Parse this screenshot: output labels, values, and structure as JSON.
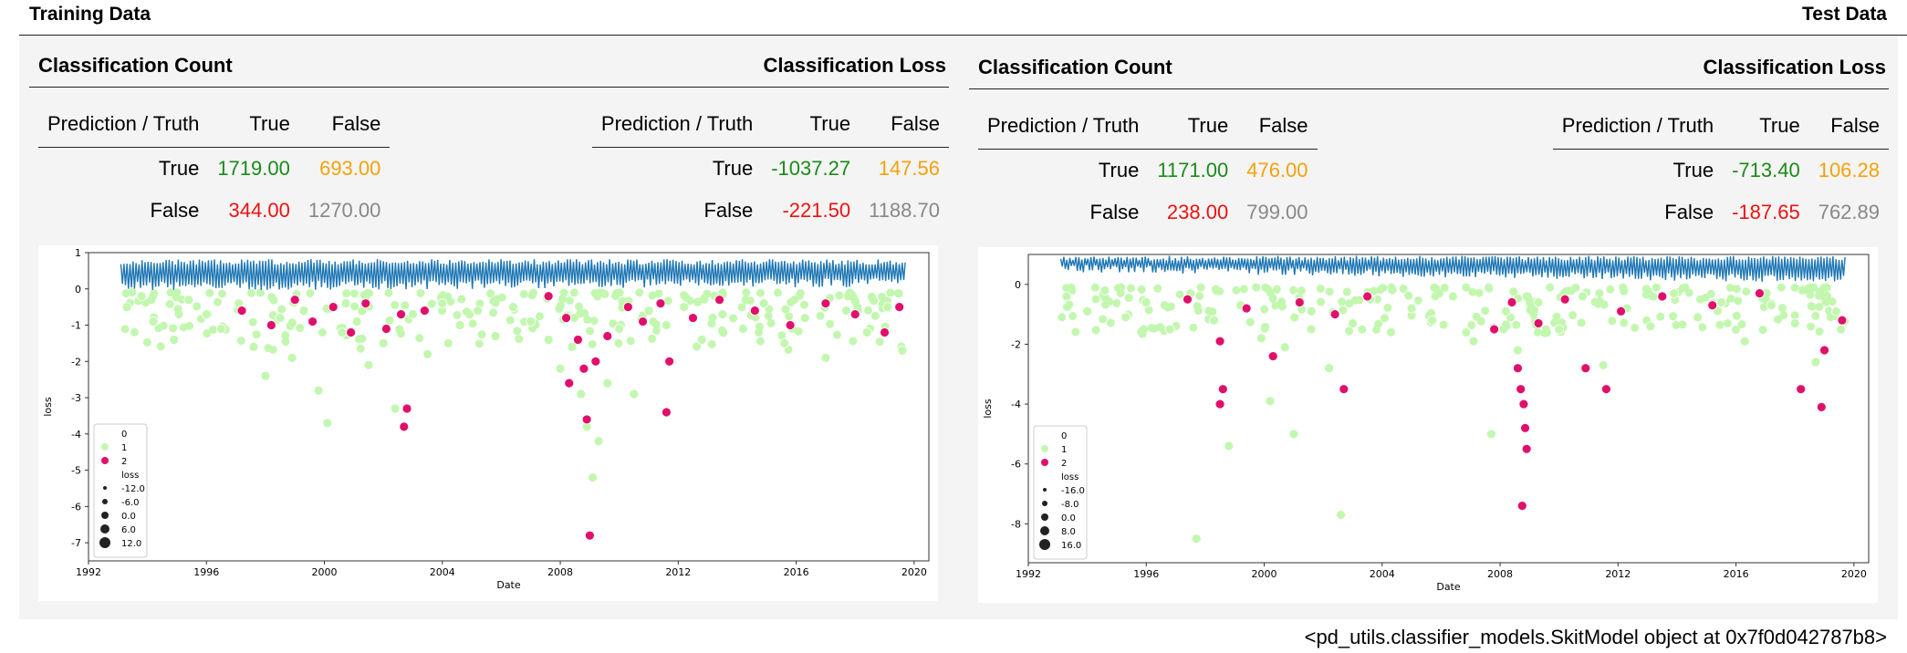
{
  "header": {
    "left_title": "Training Data",
    "right_title": "Test Data"
  },
  "colors": {
    "true_value": "#1a8a1a",
    "false_pos": "#f2a20c",
    "false_neg": "#ee1111",
    "true_neg": "#888888",
    "line": "#1f77b4",
    "class1": "#c3f7b0",
    "class2": "#e0106a"
  },
  "train": {
    "count": {
      "title": "Classification Count",
      "header": [
        "Prediction / Truth",
        "True",
        "False"
      ],
      "rows": [
        {
          "label": "True",
          "v1": "1719.00",
          "v2": "693.00"
        },
        {
          "label": "False",
          "v1": "344.00",
          "v2": "1270.00"
        }
      ]
    },
    "loss": {
      "title": "Classification Loss",
      "header": [
        "Prediction / Truth",
        "True",
        "False"
      ],
      "rows": [
        {
          "label": "True",
          "v1": "-1037.27",
          "v2": "147.56"
        },
        {
          "label": "False",
          "v1": "-221.50",
          "v2": "1188.70"
        }
      ]
    }
  },
  "test": {
    "count": {
      "title": "Classification Count",
      "header": [
        "Prediction / Truth",
        "True",
        "False"
      ],
      "rows": [
        {
          "label": "True",
          "v1": "1171.00",
          "v2": "476.00"
        },
        {
          "label": "False",
          "v1": "238.00",
          "v2": "799.00"
        }
      ]
    },
    "loss": {
      "title": "Classification Loss",
      "header": [
        "Prediction / Truth",
        "True",
        "False"
      ],
      "rows": [
        {
          "label": "True",
          "v1": "-713.40",
          "v2": "106.28"
        },
        {
          "label": "False",
          "v1": "-187.65",
          "v2": "762.89"
        }
      ]
    }
  },
  "chart_data": [
    {
      "type": "scatter",
      "xlabel": "Date",
      "ylabel": "loss",
      "xlim": [
        1992,
        2020.5
      ],
      "ylim": [
        -7.5,
        1.0
      ],
      "xticks": [
        1992,
        1996,
        2000,
        2004,
        2008,
        2012,
        2016,
        2020
      ],
      "yticks": [
        1,
        0,
        -1,
        -2,
        -3,
        -4,
        -5,
        -6,
        -7
      ],
      "line_band": {
        "start": 1993.1,
        "end": 2019.7,
        "low_start": -0.05,
        "low_end": 0.05,
        "high": 0.82
      },
      "legend": {
        "hue_title": "0",
        "hue": [
          "1",
          "2"
        ],
        "size_title": "loss",
        "sizes": [
          "-12.0",
          "-6.0",
          "0.0",
          "6.0",
          "12.0"
        ]
      },
      "series": [
        {
          "name": "1",
          "points": [
            [
              1993.3,
              -0.5
            ],
            [
              1993.8,
              -0.2
            ],
            [
              1994.2,
              -0.9
            ],
            [
              1994.9,
              -1.4
            ],
            [
              1995.4,
              -0.3
            ],
            [
              1996.0,
              -0.7
            ],
            [
              1996.5,
              -1.1
            ],
            [
              1997.1,
              -0.4
            ],
            [
              1997.6,
              -1.6
            ],
            [
              1998.0,
              -2.4
            ],
            [
              1998.5,
              -0.8
            ],
            [
              1998.9,
              -1.9
            ],
            [
              1999.3,
              -0.6
            ],
            [
              1999.8,
              -2.8
            ],
            [
              2000.1,
              -3.7
            ],
            [
              2000.6,
              -1.2
            ],
            [
              2001.1,
              -0.9
            ],
            [
              2001.5,
              -2.1
            ],
            [
              2002.0,
              -1.5
            ],
            [
              2002.4,
              -3.3
            ],
            [
              2003.0,
              -0.7
            ],
            [
              2003.5,
              -1.8
            ],
            [
              2004.0,
              -0.4
            ],
            [
              2004.6,
              -1.0
            ],
            [
              2005.2,
              -0.6
            ],
            [
              2005.8,
              -1.3
            ],
            [
              2006.4,
              -0.5
            ],
            [
              2007.0,
              -0.9
            ],
            [
              2007.6,
              -1.4
            ],
            [
              2008.0,
              -2.2
            ],
            [
              2008.4,
              -1.6
            ],
            [
              2008.7,
              -2.9
            ],
            [
              2008.9,
              -3.8
            ],
            [
              2009.1,
              -5.2
            ],
            [
              2009.3,
              -4.2
            ],
            [
              2009.6,
              -2.6
            ],
            [
              2010.0,
              -1.1
            ],
            [
              2010.5,
              -2.9
            ],
            [
              2011.0,
              -0.6
            ],
            [
              2011.6,
              -1.0
            ],
            [
              2012.2,
              -0.5
            ],
            [
              2012.8,
              -1.4
            ],
            [
              2013.5,
              -0.7
            ],
            [
              2014.2,
              -1.1
            ],
            [
              2014.9,
              -0.4
            ],
            [
              2015.6,
              -1.5
            ],
            [
              2016.3,
              -0.8
            ],
            [
              2017.0,
              -1.9
            ],
            [
              2017.7,
              -0.6
            ],
            [
              2018.4,
              -1.2
            ],
            [
              2019.1,
              -0.5
            ],
            [
              2019.6,
              -1.7
            ]
          ]
        },
        {
          "name": "2",
          "points": [
            [
              1997.2,
              -0.6
            ],
            [
              1998.2,
              -1.0
            ],
            [
              1999.0,
              -0.3
            ],
            [
              1999.6,
              -0.9
            ],
            [
              2000.3,
              -0.5
            ],
            [
              2000.9,
              -1.2
            ],
            [
              2001.4,
              -0.4
            ],
            [
              2002.1,
              -1.1
            ],
            [
              2002.6,
              -0.7
            ],
            [
              2002.8,
              -3.3
            ],
            [
              2002.7,
              -3.8
            ],
            [
              2003.4,
              -0.6
            ],
            [
              2007.6,
              -0.2
            ],
            [
              2008.2,
              -0.8
            ],
            [
              2008.3,
              -2.6
            ],
            [
              2008.6,
              -1.4
            ],
            [
              2008.8,
              -2.2
            ],
            [
              2008.9,
              -3.6
            ],
            [
              2009.0,
              -6.8
            ],
            [
              2009.2,
              -2.0
            ],
            [
              2009.6,
              -1.3
            ],
            [
              2010.3,
              -0.5
            ],
            [
              2010.8,
              -0.9
            ],
            [
              2011.4,
              -0.4
            ],
            [
              2011.6,
              -3.4
            ],
            [
              2011.7,
              -2.0
            ],
            [
              2012.5,
              -0.8
            ],
            [
              2013.4,
              -0.3
            ],
            [
              2014.6,
              -0.6
            ],
            [
              2015.8,
              -1.0
            ],
            [
              2017.0,
              -0.4
            ],
            [
              2018.0,
              -0.7
            ],
            [
              2019.0,
              -1.2
            ],
            [
              2019.5,
              -0.5
            ]
          ]
        }
      ]
    },
    {
      "type": "scatter",
      "xlabel": "Date",
      "ylabel": "loss",
      "xlim": [
        1992,
        2020.5
      ],
      "ylim": [
        -9.3,
        1.0
      ],
      "xticks": [
        1992,
        1996,
        2000,
        2004,
        2008,
        2012,
        2016,
        2020
      ],
      "yticks": [
        0,
        -2,
        -4,
        -6,
        -8
      ],
      "line_band": {
        "start": 1993.1,
        "end": 2019.7,
        "low_start": 0.4,
        "low_end": 0.05,
        "high": 0.95
      },
      "legend": {
        "hue_title": "0",
        "hue": [
          "1",
          "2"
        ],
        "size_title": "loss",
        "sizes": [
          "-16.0",
          "-8.0",
          "0.0",
          "8.0",
          "16.0"
        ]
      },
      "series": [
        {
          "name": "1",
          "points": [
            [
              1993.3,
              -0.4
            ],
            [
              1994.0,
              -0.9
            ],
            [
              1994.6,
              -0.2
            ],
            [
              1995.3,
              -1.1
            ],
            [
              1996.0,
              -0.6
            ],
            [
              1996.8,
              -1.5
            ],
            [
              1997.5,
              -0.3
            ],
            [
              1997.7,
              -8.5
            ],
            [
              1998.3,
              -1.2
            ],
            [
              1998.8,
              -5.4
            ],
            [
              1999.2,
              -0.7
            ],
            [
              1999.9,
              -1.8
            ],
            [
              2000.2,
              -3.9
            ],
            [
              2000.7,
              -2.1
            ],
            [
              2001.0,
              -5.0
            ],
            [
              2001.6,
              -0.9
            ],
            [
              2002.2,
              -2.8
            ],
            [
              2002.6,
              -7.7
            ],
            [
              2003.0,
              -1.3
            ],
            [
              2003.6,
              -0.5
            ],
            [
              2004.3,
              -1.6
            ],
            [
              2005.0,
              -0.8
            ],
            [
              2005.7,
              -1.2
            ],
            [
              2006.4,
              -0.4
            ],
            [
              2007.1,
              -1.9
            ],
            [
              2007.7,
              -5.0
            ],
            [
              2008.2,
              -0.9
            ],
            [
              2008.6,
              -2.2
            ],
            [
              2009.3,
              -0.6
            ],
            [
              2010.0,
              -1.5
            ],
            [
              2010.8,
              -0.4
            ],
            [
              2011.5,
              -2.7
            ],
            [
              2012.3,
              -0.8
            ],
            [
              2013.1,
              -1.4
            ],
            [
              2013.9,
              -0.3
            ],
            [
              2014.7,
              -1.1
            ],
            [
              2015.5,
              -0.6
            ],
            [
              2016.3,
              -1.9
            ],
            [
              2017.2,
              -0.7
            ],
            [
              2018.0,
              -1.3
            ],
            [
              2018.7,
              -2.6
            ],
            [
              2019.4,
              -0.9
            ]
          ]
        },
        {
          "name": "2",
          "points": [
            [
              1997.4,
              -0.5
            ],
            [
              1998.5,
              -1.9
            ],
            [
              1998.6,
              -3.5
            ],
            [
              1998.5,
              -4.0
            ],
            [
              1999.4,
              -0.8
            ],
            [
              2000.3,
              -2.4
            ],
            [
              2001.2,
              -0.6
            ],
            [
              2002.4,
              -1.0
            ],
            [
              2002.7,
              -3.5
            ],
            [
              2003.5,
              -0.4
            ],
            [
              2007.8,
              -1.5
            ],
            [
              2008.4,
              -0.6
            ],
            [
              2008.6,
              -2.8
            ],
            [
              2008.7,
              -3.5
            ],
            [
              2008.8,
              -4.0
            ],
            [
              2008.85,
              -4.8
            ],
            [
              2008.9,
              -5.5
            ],
            [
              2008.75,
              -7.4
            ],
            [
              2009.3,
              -1.3
            ],
            [
              2010.2,
              -0.5
            ],
            [
              2010.9,
              -2.8
            ],
            [
              2011.6,
              -3.5
            ],
            [
              2012.1,
              -0.9
            ],
            [
              2013.5,
              -0.4
            ],
            [
              2015.2,
              -0.7
            ],
            [
              2016.8,
              -0.3
            ],
            [
              2018.2,
              -3.5
            ],
            [
              2018.9,
              -4.1
            ],
            [
              2019.0,
              -2.2
            ],
            [
              2019.6,
              -1.2
            ]
          ]
        }
      ]
    }
  ],
  "footer": {
    "text": "<pd_utils.classifier_models.SkitModel object at 0x7f0d042787b8>"
  }
}
